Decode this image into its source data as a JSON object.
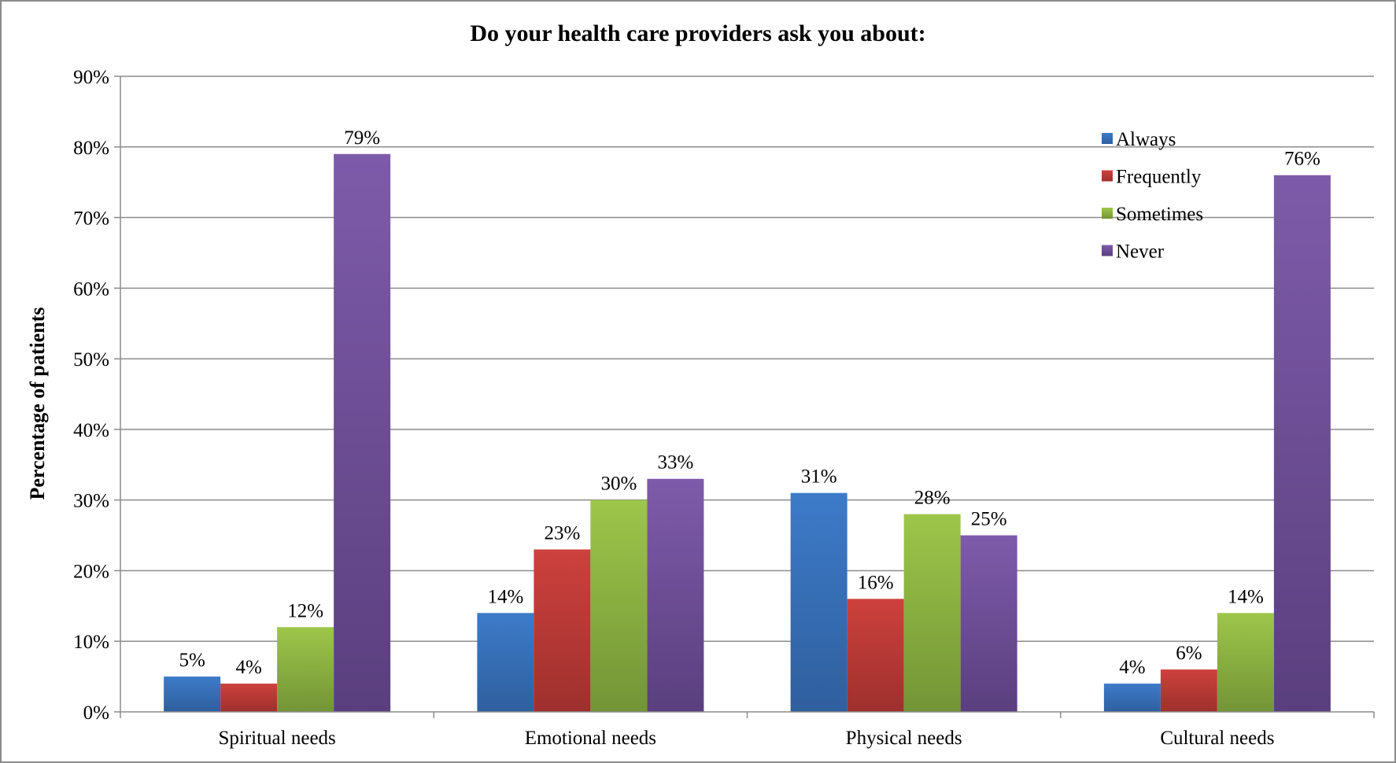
{
  "chart_data": {
    "type": "bar",
    "title": "Do your health care providers ask you about:",
    "xlabel": "",
    "ylabel": "Percentage of patients",
    "categories": [
      "Spiritual needs",
      "Emotional needs",
      "Physical needs",
      "Cultural needs"
    ],
    "series": [
      {
        "name": "Always",
        "color": "#4F81BD",
        "values": [
          5,
          14,
          31,
          4
        ],
        "labels": [
          "5%",
          "14%",
          "31%",
          "4%"
        ]
      },
      {
        "name": "Frequently",
        "color": "#C0504D",
        "values": [
          4,
          23,
          16,
          6
        ],
        "labels": [
          "4%",
          "23%",
          "16%",
          "6%"
        ]
      },
      {
        "name": "Sometimes",
        "color": "#9BBB59",
        "values": [
          12,
          30,
          28,
          14
        ],
        "labels": [
          "12%",
          "30%",
          "28%",
          "14%"
        ]
      },
      {
        "name": "Never",
        "color": "#8064A2",
        "values": [
          79,
          33,
          25,
          76
        ],
        "labels": [
          "79%",
          "33%",
          "25%",
          "76%"
        ]
      }
    ],
    "ylim": [
      0,
      90
    ],
    "yticks": [
      0,
      10,
      20,
      30,
      40,
      50,
      60,
      70,
      80,
      90
    ],
    "ytick_labels": [
      "0%",
      "10%",
      "20%",
      "30%",
      "40%",
      "50%",
      "60%",
      "70%",
      "80%",
      "90%"
    ],
    "grid": true,
    "legend_position": "top-right"
  }
}
